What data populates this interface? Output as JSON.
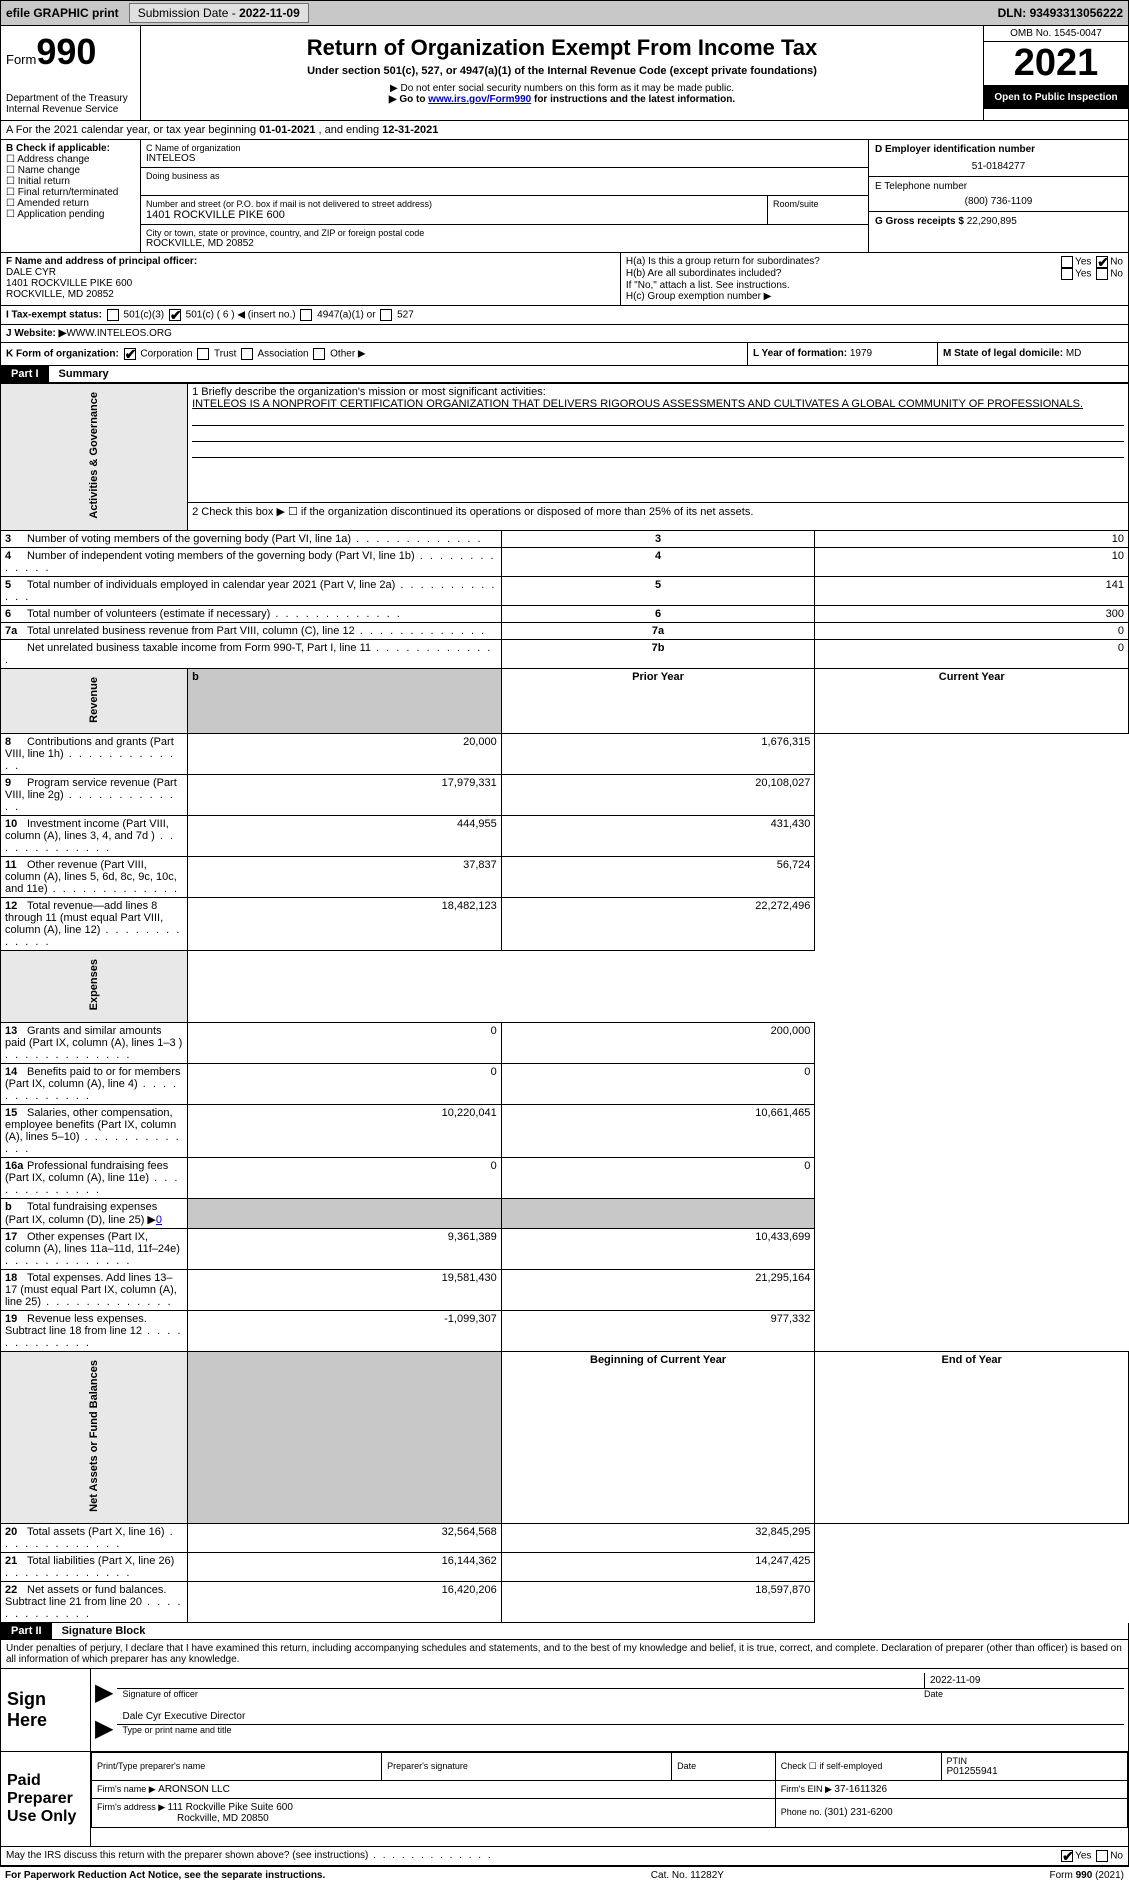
{
  "top": {
    "efile": "efile GRAPHIC print",
    "submission_label": "Submission Date - ",
    "submission_date": "2022-11-09",
    "dln_label": "DLN: ",
    "dln": "93493313056222"
  },
  "header": {
    "form_label": "Form",
    "form_number": "990",
    "dept": "Department of the Treasury",
    "irs": "Internal Revenue Service",
    "title": "Return of Organization Exempt From Income Tax",
    "subtitle": "Under section 501(c), 527, or 4947(a)(1) of the Internal Revenue Code (except private foundations)",
    "note1": "▶ Do not enter social security numbers on this form as it may be made public.",
    "note2_pre": "▶ Go to ",
    "note2_link": "www.irs.gov/Form990",
    "note2_post": " for instructions and the latest information.",
    "omb": "OMB No. 1545-0047",
    "year": "2021",
    "open": "Open to Public Inspection"
  },
  "lineA": {
    "text_pre": "A For the 2021 calendar year, or tax year beginning ",
    "begin": "01-01-2021",
    "mid": " , and ending ",
    "end": "12-31-2021"
  },
  "b": {
    "label": "B Check if applicable:",
    "opts": [
      "Address change",
      "Name change",
      "Initial return",
      "Final return/terminated",
      "Amended return",
      "Application pending"
    ]
  },
  "c": {
    "name_label": "C Name of organization",
    "name": "INTELEOS",
    "dba_label": "Doing business as",
    "addr_label": "Number and street (or P.O. box if mail is not delivered to street address)",
    "room_label": "Room/suite",
    "addr": "1401 ROCKVILLE PIKE 600",
    "city_label": "City or town, state or province, country, and ZIP or foreign postal code",
    "city": "ROCKVILLE, MD  20852"
  },
  "d": {
    "ein_label": "D Employer identification number",
    "ein": "51-0184277",
    "phone_label": "E Telephone number",
    "phone": "(800) 736-1109",
    "gross_label": "G Gross receipts $ ",
    "gross": "22,290,895"
  },
  "f": {
    "label": "F Name and address of principal officer:",
    "name": "DALE CYR",
    "addr1": "1401 ROCKVILLE PIKE 600",
    "addr2": "ROCKVILLE, MD  20852"
  },
  "h": {
    "a": "H(a)  Is this a group return for subordinates?",
    "b": "H(b)  Are all subordinates included?",
    "note": "If \"No,\" attach a list. See instructions.",
    "c": "H(c)  Group exemption number ▶",
    "yes": "Yes",
    "no": "No"
  },
  "i": {
    "label": "I  Tax-exempt status:",
    "o1": "501(c)(3)",
    "o2": "501(c) ( 6 ) ◀ (insert no.)",
    "o3": "4947(a)(1) or",
    "o4": "527"
  },
  "j": {
    "label": "J  Website: ▶",
    "value": "  WWW.INTELEOS.ORG"
  },
  "k": {
    "label": "K Form of organization:",
    "o1": "Corporation",
    "o2": "Trust",
    "o3": "Association",
    "o4": "Other ▶"
  },
  "l": {
    "label": "L Year of formation: ",
    "value": "1979"
  },
  "m": {
    "label": "M State of legal domicile:",
    "value": "MD"
  },
  "parts": {
    "p1": "Part I",
    "p1t": "Summary",
    "p2": "Part II",
    "p2t": "Signature Block"
  },
  "summary": {
    "tabs": {
      "ag": "Activities & Governance",
      "rev": "Revenue",
      "exp": "Expenses",
      "net": "Net Assets or Fund Balances"
    },
    "l1_label": "1  Briefly describe the organization's mission or most significant activities:",
    "l1_text": "INTELEOS IS A NONPROFIT CERTIFICATION ORGANIZATION THAT DELIVERS RIGOROUS ASSESSMENTS AND CULTIVATES A GLOBAL COMMUNITY OF PROFESSIONALS.",
    "l2": "2  Check this box ▶ ☐  if the organization discontinued its operations or disposed of more than 25% of its net assets.",
    "headers": {
      "prior": "Prior Year",
      "current": "Current Year",
      "begin": "Beginning of Current Year",
      "end": "End of Year"
    },
    "rows_ag": [
      {
        "n": "3",
        "t": "Number of voting members of the governing body (Part VI, line 1a)",
        "b": "3",
        "v": "10"
      },
      {
        "n": "4",
        "t": "Number of independent voting members of the governing body (Part VI, line 1b)",
        "b": "4",
        "v": "10"
      },
      {
        "n": "5",
        "t": "Total number of individuals employed in calendar year 2021 (Part V, line 2a)",
        "b": "5",
        "v": "141"
      },
      {
        "n": "6",
        "t": "Total number of volunteers (estimate if necessary)",
        "b": "6",
        "v": "300"
      },
      {
        "n": "7a",
        "t": "Total unrelated business revenue from Part VIII, column (C), line 12",
        "b": "7a",
        "v": "0"
      },
      {
        "n": "",
        "t": "Net unrelated business taxable income from Form 990-T, Part I, line 11",
        "b": "7b",
        "v": "0"
      }
    ],
    "rows_rev": [
      {
        "n": "8",
        "t": "Contributions and grants (Part VIII, line 1h)",
        "p": "20,000",
        "c": "1,676,315"
      },
      {
        "n": "9",
        "t": "Program service revenue (Part VIII, line 2g)",
        "p": "17,979,331",
        "c": "20,108,027"
      },
      {
        "n": "10",
        "t": "Investment income (Part VIII, column (A), lines 3, 4, and 7d )",
        "p": "444,955",
        "c": "431,430"
      },
      {
        "n": "11",
        "t": "Other revenue (Part VIII, column (A), lines 5, 6d, 8c, 9c, 10c, and 11e)",
        "p": "37,837",
        "c": "56,724"
      },
      {
        "n": "12",
        "t": "Total revenue—add lines 8 through 11 (must equal Part VIII, column (A), line 12)",
        "p": "18,482,123",
        "c": "22,272,496"
      }
    ],
    "rows_exp": [
      {
        "n": "13",
        "t": "Grants and similar amounts paid (Part IX, column (A), lines 1–3 )",
        "p": "0",
        "c": "200,000"
      },
      {
        "n": "14",
        "t": "Benefits paid to or for members (Part IX, column (A), line 4)",
        "p": "0",
        "c": "0"
      },
      {
        "n": "15",
        "t": "Salaries, other compensation, employee benefits (Part IX, column (A), lines 5–10)",
        "p": "10,220,041",
        "c": "10,661,465"
      },
      {
        "n": "16a",
        "t": "Professional fundraising fees (Part IX, column (A), line 11e)",
        "p": "0",
        "c": "0"
      },
      {
        "n": "b",
        "t": "Total fundraising expenses (Part IX, column (D), line 25) ▶",
        "p": "",
        "c": "",
        "shaded": true,
        "extra": "0"
      },
      {
        "n": "17",
        "t": "Other expenses (Part IX, column (A), lines 11a–11d, 11f–24e)",
        "p": "9,361,389",
        "c": "10,433,699"
      },
      {
        "n": "18",
        "t": "Total expenses. Add lines 13–17 (must equal Part IX, column (A), line 25)",
        "p": "19,581,430",
        "c": "21,295,164"
      },
      {
        "n": "19",
        "t": "Revenue less expenses. Subtract line 18 from line 12",
        "p": "-1,099,307",
        "c": "977,332"
      }
    ],
    "rows_net": [
      {
        "n": "20",
        "t": "Total assets (Part X, line 16)",
        "p": "32,564,568",
        "c": "32,845,295"
      },
      {
        "n": "21",
        "t": "Total liabilities (Part X, line 26)",
        "p": "16,144,362",
        "c": "14,247,425"
      },
      {
        "n": "22",
        "t": "Net assets or fund balances. Subtract line 21 from line 20",
        "p": "16,420,206",
        "c": "18,597,870"
      }
    ]
  },
  "sig": {
    "penalty": "Under penalties of perjury, I declare that I have examined this return, including accompanying schedules and statements, and to the best of my knowledge and belief, it is true, correct, and complete. Declaration of preparer (other than officer) is based on all information of which preparer has any knowledge.",
    "sign_here": "Sign Here",
    "sig_officer": "Signature of officer",
    "date": "Date",
    "sig_date": "2022-11-09",
    "name_title": "Dale Cyr  Executive Director",
    "type_print": "Type or print name and title",
    "paid": "Paid Preparer Use Only",
    "print_name_l": "Print/Type preparer's name",
    "prep_sig_l": "Preparer's signature",
    "date_l": "Date",
    "check_l": "Check ☐ if self-employed",
    "ptin_l": "PTIN",
    "ptin": "P01255941",
    "firm_name_l": "Firm's name    ▶ ",
    "firm_name": "ARONSON LLC",
    "firm_ein_l": "Firm's EIN ▶ ",
    "firm_ein": "37-1611326",
    "firm_addr_l": "Firm's address ▶ ",
    "firm_addr1": "111 Rockville Pike Suite 600",
    "firm_addr2": "Rockville, MD  20850",
    "phone_l": "Phone no. ",
    "phone": "(301) 231-6200",
    "discuss": "May the IRS discuss this return with the preparer shown above? (see instructions)"
  },
  "footer": {
    "l": "For Paperwork Reduction Act Notice, see the separate instructions.",
    "c": "Cat. No. 11282Y",
    "r": "Form 990 (2021)"
  },
  "colors": {
    "bg": "#ffffff",
    "bar_gray": "#c8c8c8",
    "tab_gray": "#e8e8e8",
    "black": "#000000",
    "link_blue": "#0000cc"
  }
}
